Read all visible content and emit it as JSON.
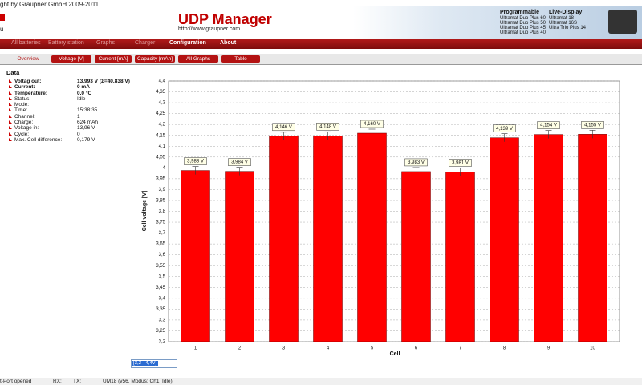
{
  "header": {
    "copyright": "ght by Graupner GmbH 2009-2011",
    "fragment": "u",
    "title": "UDP Manager",
    "url": "http://www.graupner.com",
    "programmable": {
      "title": "Programmable",
      "items": [
        "Ultramat Duo Plus 60",
        "Ultramat Duo Plus 50",
        "Ultramat Duo Plus 45",
        "Ultramat Duo Plus 40"
      ]
    },
    "live_display": {
      "title": "Live-Display",
      "items": [
        "Ultramat 18",
        "Ultramat 16S",
        "Ultra Trio Plus 14"
      ]
    }
  },
  "menu": [
    "All batteries",
    "Battery station",
    "Graphs",
    "Charger",
    "Configuration",
    "About"
  ],
  "tabs": [
    "Overview",
    "Voltage [V]",
    "Current [mA]",
    "Capacity [mAh]",
    "All Graphs",
    "Table"
  ],
  "data_panel": {
    "title": "Data",
    "rows": [
      [
        "Voltag out:",
        "13,993 V (Σ=40,838 V)"
      ],
      [
        "Current:",
        "0 mA"
      ],
      [
        "Temperature:",
        "0,0 °C"
      ],
      [
        "Status:",
        "Idle"
      ],
      [
        "Mode:"
      ],
      [
        "Time:",
        "15:38:35"
      ],
      [
        "Channel:",
        "1"
      ],
      [
        "Charge:",
        "624 mAh"
      ],
      [
        "Voltage in:",
        "13,96 V"
      ],
      [
        "Cycle:",
        "0"
      ],
      [
        "Max. Cell difference:",
        "0,179 V"
      ]
    ]
  },
  "range_select": "[3,2 - 4,4V]",
  "status_bar": {
    "port": "t-Port opened",
    "rx": "RX:",
    "tx": "TX:",
    "device": "UM18 (v56, Modus: Ch1: Idle)"
  },
  "chart_data": {
    "type": "bar",
    "x_label": "Cell",
    "y_label": "Cell voltage [V]",
    "color": "#ff0000",
    "grid": true,
    "categories": [
      "1",
      "2",
      "3",
      "4",
      "5",
      "6",
      "7",
      "8",
      "9",
      "10"
    ],
    "values": [
      3.988,
      3.984,
      4.146,
      4.148,
      4.16,
      3.983,
      3.981,
      4.139,
      4.154,
      4.155
    ],
    "value_labels": [
      "3,988 V",
      "3,984 V",
      "4,146 V",
      "4,148 V",
      "4,160 V",
      "3,983 V",
      "3,981 V",
      "4,139 V",
      "4,154 V",
      "4,155 V"
    ],
    "ylim": [
      3.2,
      4.4
    ],
    "yticks": [
      {
        "value": 3.2,
        "label": "3,2"
      },
      {
        "value": 3.25,
        "label": "3,25"
      },
      {
        "value": 3.3,
        "label": "3,3"
      },
      {
        "value": 3.35,
        "label": "3,35"
      },
      {
        "value": 3.4,
        "label": "3,4"
      },
      {
        "value": 3.45,
        "label": "3,45"
      },
      {
        "value": 3.5,
        "label": "3,5"
      },
      {
        "value": 3.55,
        "label": "3,55"
      },
      {
        "value": 3.6,
        "label": "3,6"
      },
      {
        "value": 3.65,
        "label": "3,65"
      },
      {
        "value": 3.7,
        "label": "3,7"
      },
      {
        "value": 3.75,
        "label": "3,75"
      },
      {
        "value": 3.8,
        "label": "3,8"
      },
      {
        "value": 3.85,
        "label": "3,85"
      },
      {
        "value": 3.9,
        "label": "3,9"
      },
      {
        "value": 3.95,
        "label": "3,95"
      },
      {
        "value": 4,
        "label": "4"
      },
      {
        "value": 4.05,
        "label": "4,05"
      },
      {
        "value": 4.1,
        "label": "4,1"
      },
      {
        "value": 4.15,
        "label": "4,15"
      },
      {
        "value": 4.2,
        "label": "4,2"
      },
      {
        "value": 4.25,
        "label": "4,25"
      },
      {
        "value": 4.3,
        "label": "4,3"
      },
      {
        "value": 4.35,
        "label": "4,35"
      },
      {
        "value": 4.4,
        "label": "4,4"
      }
    ]
  }
}
